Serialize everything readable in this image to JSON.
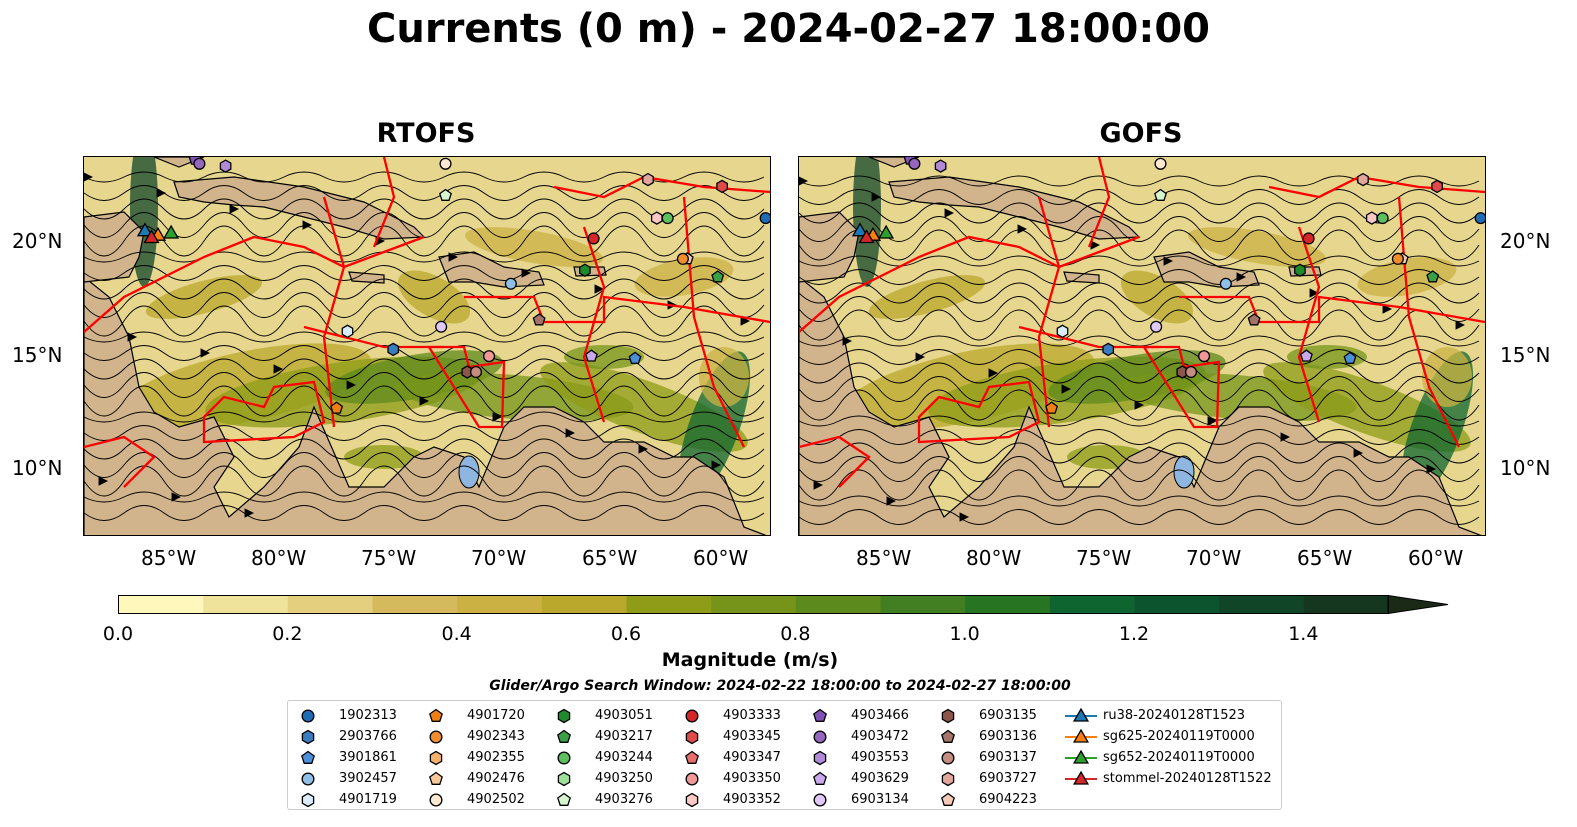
{
  "title": "Currents (0 m) - 2024-02-27 18:00:00",
  "panels": [
    {
      "name": "RTOFS"
    },
    {
      "name": "GOFS"
    }
  ],
  "lat_ticks": [
    "20°N",
    "15°N",
    "10°N"
  ],
  "lon_ticks": [
    "85°W",
    "80°W",
    "75°W",
    "70°W",
    "65°W",
    "60°W"
  ],
  "colorbar": {
    "label": "Magnitude (m/s)",
    "ticks": [
      "0.0",
      "0.2",
      "0.4",
      "0.6",
      "0.8",
      "1.0",
      "1.2",
      "1.4"
    ],
    "min": 0.0,
    "max": 1.5,
    "step": 0.1,
    "extend": "max",
    "colors": [
      "#fff7bc",
      "#efe29b",
      "#e3cf7e",
      "#d4b95d",
      "#cbb143",
      "#b9a82b",
      "#8e9c17",
      "#76941a",
      "#5d8a1c",
      "#427f22",
      "#277523",
      "#0f6530",
      "#0c542e",
      "#104528",
      "#153720",
      "#1a2a17"
    ]
  },
  "search_window": "Glider/Argo Search Window: 2024-02-22 18:00:00 to 2024-02-27 18:00:00",
  "land_color": "#d2b48c",
  "boundary_color": "#ff0000",
  "legend": [
    {
      "label": "1902313",
      "marker": "circle",
      "color": "#1f6cb4"
    },
    {
      "label": "2903766",
      "marker": "hexagon",
      "color": "#3a7dbf"
    },
    {
      "label": "3901861",
      "marker": "pentagon",
      "color": "#4a90d9"
    },
    {
      "label": "3902457",
      "marker": "circle",
      "color": "#8ec0e8"
    },
    {
      "label": "4901719",
      "marker": "hexagon",
      "color": "#d9ecfa"
    },
    {
      "label": "4901720",
      "marker": "pentagon",
      "color": "#f07f13"
    },
    {
      "label": "4902343",
      "marker": "circle",
      "color": "#f28d2c"
    },
    {
      "label": "4902355",
      "marker": "hexagon",
      "color": "#f6b26b"
    },
    {
      "label": "4902476",
      "marker": "pentagon",
      "color": "#f8c99b"
    },
    {
      "label": "4902502",
      "marker": "circle",
      "color": "#fde8d2"
    },
    {
      "label": "4903051",
      "marker": "hexagon",
      "color": "#1e8a2c"
    },
    {
      "label": "4903217",
      "marker": "pentagon",
      "color": "#39a046"
    },
    {
      "label": "4903244",
      "marker": "circle",
      "color": "#5cc15c"
    },
    {
      "label": "4903250",
      "marker": "hexagon",
      "color": "#9ee29a"
    },
    {
      "label": "4903276",
      "marker": "pentagon",
      "color": "#d7f5cf"
    },
    {
      "label": "4903333",
      "marker": "circle",
      "color": "#d62728"
    },
    {
      "label": "4903345",
      "marker": "hexagon",
      "color": "#df4a4a"
    },
    {
      "label": "4903347",
      "marker": "pentagon",
      "color": "#e86e6e"
    },
    {
      "label": "4903350",
      "marker": "circle",
      "color": "#f29797"
    },
    {
      "label": "4903352",
      "marker": "hexagon",
      "color": "#fbc8c3"
    },
    {
      "label": "4903466",
      "marker": "pentagon",
      "color": "#7f52b4"
    },
    {
      "label": "4903472",
      "marker": "circle",
      "color": "#9467bd"
    },
    {
      "label": "4903553",
      "marker": "hexagon",
      "color": "#b08ad6"
    },
    {
      "label": "4903629",
      "marker": "pentagon",
      "color": "#c9a9ea"
    },
    {
      "label": "6903134",
      "marker": "circle",
      "color": "#e0c8f7"
    },
    {
      "label": "6903135",
      "marker": "hexagon",
      "color": "#8c564b"
    },
    {
      "label": "6903136",
      "marker": "pentagon",
      "color": "#a4736a"
    },
    {
      "label": "6903137",
      "marker": "circle",
      "color": "#c38d80"
    },
    {
      "label": "6903727",
      "marker": "hexagon",
      "color": "#e2a79a"
    },
    {
      "label": "6904223",
      "marker": "pentagon",
      "color": "#f6c9b7"
    },
    {
      "label": "ru38-20240128T1523",
      "marker": "triangle",
      "color": "#1f77b4"
    },
    {
      "label": "sg625-20240119T0000",
      "marker": "triangle",
      "color": "#ff7f0e"
    },
    {
      "label": "sg652-20240119T0000",
      "marker": "triangle",
      "color": "#2ca02c"
    },
    {
      "label": "stommel-20240128T1522",
      "marker": "triangle",
      "color": "#d62728"
    }
  ]
}
